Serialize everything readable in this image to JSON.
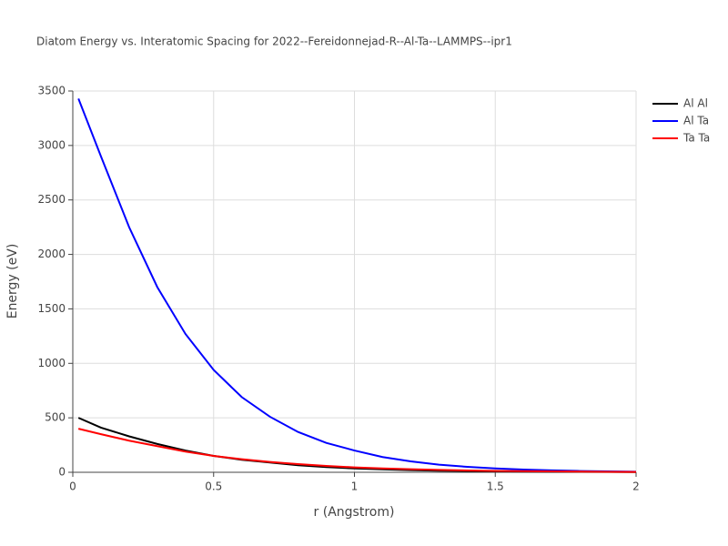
{
  "chart_data": {
    "type": "line",
    "title": "Diatom Energy vs. Interatomic Spacing for 2022--Fereidonnejad-R--Al-Ta--LAMMPS--ipr1",
    "x_label": "r (Angstrom)",
    "y_label": "Energy (eV)",
    "x": [
      0.02,
      0.1,
      0.2,
      0.3,
      0.4,
      0.5,
      0.6,
      0.7,
      0.8,
      0.9,
      1.0,
      1.1,
      1.2,
      1.3,
      1.4,
      1.5,
      1.6,
      1.7,
      1.8,
      1.9,
      2.0
    ],
    "series": [
      {
        "name": "Al Al",
        "color": "#000000",
        "values": [
          500,
          410,
          330,
          260,
          200,
          150,
          115,
          90,
          65,
          48,
          35,
          27,
          20,
          15,
          12,
          9,
          7,
          5,
          4,
          3,
          2
        ]
      },
      {
        "name": "Al Ta",
        "color": "#0000ff",
        "values": [
          3430,
          2900,
          2250,
          1700,
          1270,
          940,
          690,
          510,
          370,
          270,
          200,
          140,
          100,
          70,
          50,
          35,
          25,
          18,
          12,
          8,
          5
        ]
      },
      {
        "name": "Ta Ta",
        "color": "#ff0000",
        "values": [
          400,
          350,
          290,
          240,
          190,
          150,
          120,
          95,
          75,
          58,
          45,
          36,
          28,
          22,
          17,
          13,
          10,
          8,
          6,
          4,
          3
        ]
      }
    ],
    "xlim": [
      0,
      2
    ],
    "xticks": [
      0,
      0.5,
      1,
      1.5,
      2
    ],
    "ylim": [
      0,
      3500
    ],
    "yticks": [
      0,
      500,
      1000,
      1500,
      2000,
      2500,
      3000,
      3500
    ],
    "grid": true,
    "legend": "top-right"
  }
}
